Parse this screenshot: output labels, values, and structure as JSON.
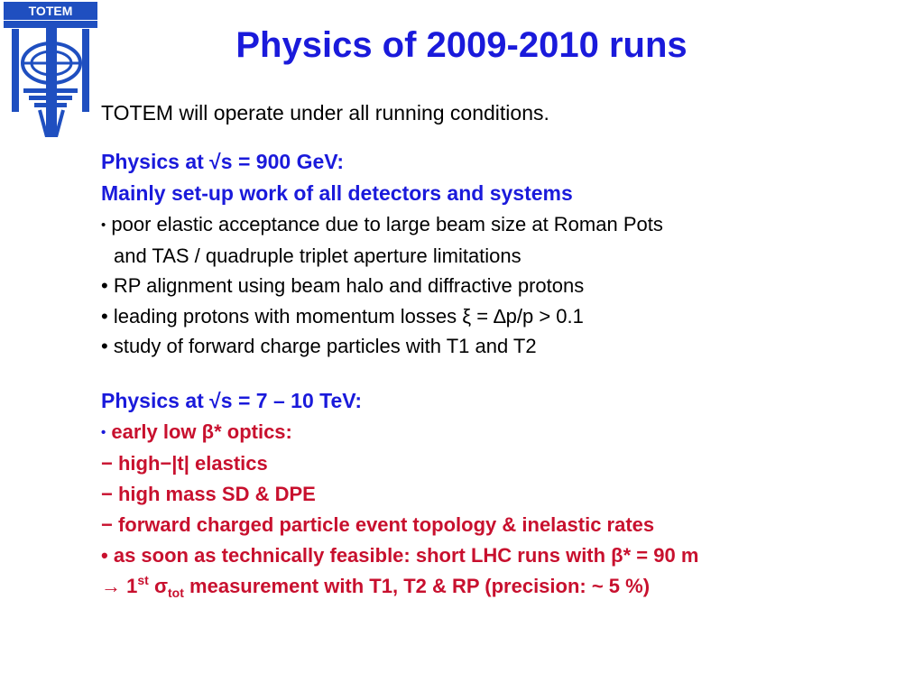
{
  "logo": {
    "text": "TOTEM",
    "color": "#1f4fc0"
  },
  "title": "Physics of 2009-2010 runs",
  "intro": "TOTEM will operate under all running conditions.",
  "s900": {
    "head1": "Physics at √s = 900 GeV:",
    "head2": "Mainly set-up work of all detectors and systems",
    "bullets": [
      {
        "marker": "•",
        "text": "poor elastic acceptance due to large beam size at Roman Pots"
      },
      {
        "marker": "",
        "text": "and TAS / quadruple triplet aperture limitations"
      },
      {
        "marker": "•",
        "text": "RP alignment using beam halo and diffractive protons"
      },
      {
        "marker": "•",
        "text": "leading protons with momentum losses ξ = ∆p/p > 0.1"
      },
      {
        "marker": "•",
        "text": "study of forward charge particles with T1 and T2"
      }
    ]
  },
  "s7": {
    "head": "Physics at √s = 7 – 10 TeV:",
    "items": [
      {
        "marker": "•",
        "text": "early low β* optics:"
      },
      {
        "marker": "−",
        "text": "high−|t| elastics"
      },
      {
        "marker": "−",
        "text": "high mass SD & DPE"
      },
      {
        "marker": "−",
        "text": "forward charged particle event topology & inelastic rates"
      },
      {
        "marker": "•",
        "text": "as soon as technically feasible: short LHC runs with β* = 90 m"
      }
    ],
    "final": {
      "arrow": "→",
      "num": "1",
      "sup": "st",
      "sigma": "σ",
      "sub": "tot",
      "rest": "measurement with T1, T2 & RP (precision: ~ 5 %)"
    }
  }
}
